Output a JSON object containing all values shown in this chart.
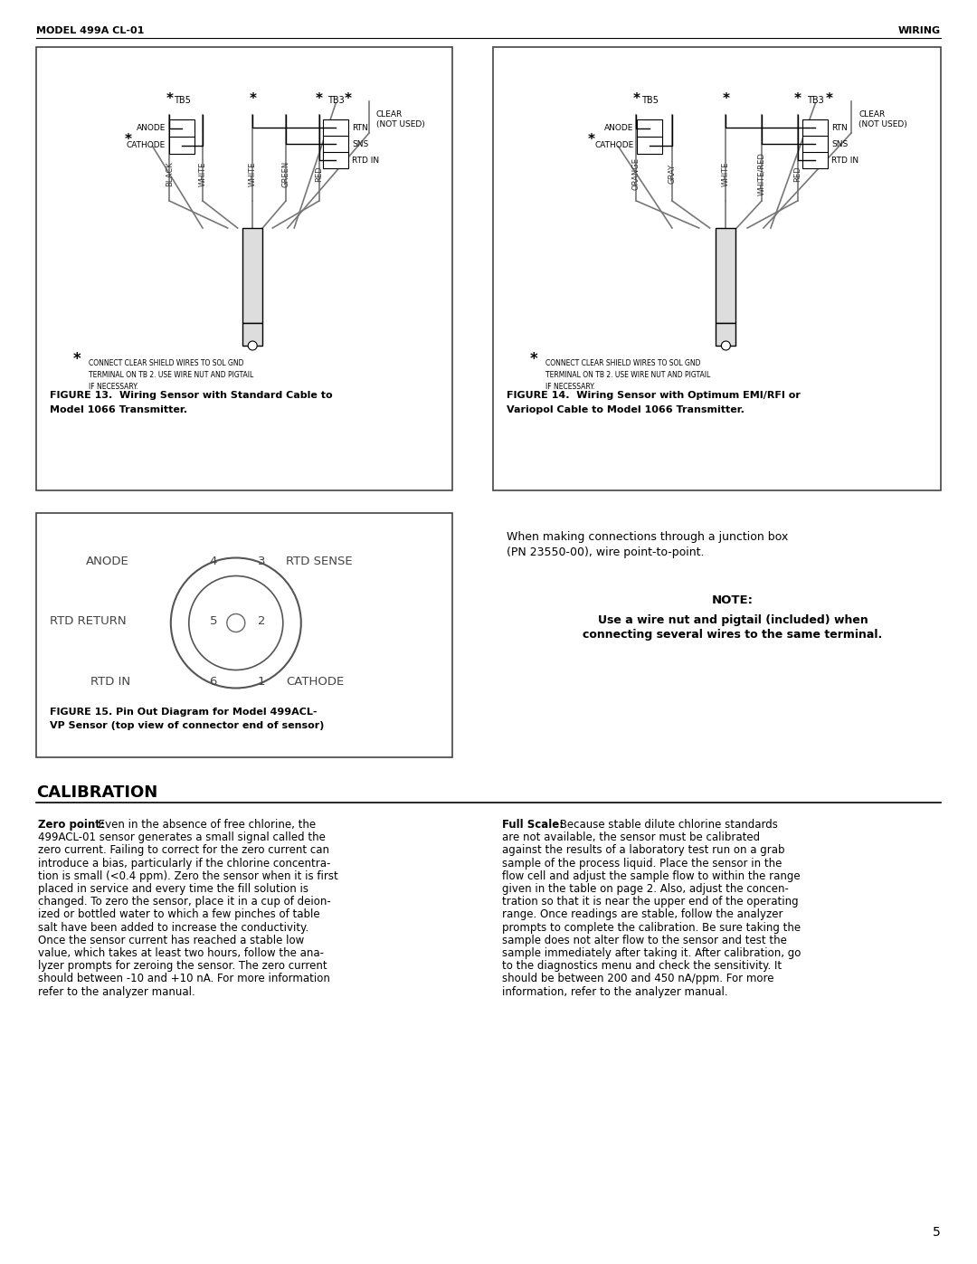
{
  "header_left": "MODEL 499A CL-01",
  "header_right": "WIRING",
  "page_number": "5",
  "fig13_title_bold": "FIGURE 13.  Wiring Sensor with Standard Cable to\nModel 1066 Transmitter.",
  "fig14_title_bold": "FIGURE 14.  Wiring Sensor with Optimum EMI/RFI or\nVariopol Cable to Model 1066 Transmitter.",
  "fig15_title_bold": "FIGURE 15. Pin Out Diagram for Model 499ACL-\nVP Sensor (top view of connector end of sensor)",
  "note_text": "NOTE:",
  "note_body": "Use a wire nut and pigtail (included) when\nconnecting several wires to the same terminal.",
  "junction_box_text": "When making connections through a junction box\n(PN 23550-00), wire point-to-point.",
  "calibration_title": "CALIBRATION",
  "shield_note": "CONNECT CLEAR SHIELD WIRES TO SOL GND\nTERMINAL ON TB 2. USE WIRE NUT AND PIGTAIL\nIF NECESSARY.",
  "bg_color": "#ffffff",
  "text_color": "#000000",
  "zero_lines": [
    "Zero point: Even in the absence of free chlorine, the",
    "499ACL-01 sensor generates a small signal called the",
    "zero current. Failing to correct for the zero current can",
    "introduce a bias, particularly if the chlorine concentra-",
    "tion is small (<0.4 ppm). Zero the sensor when it is first",
    "placed in service and every time the fill solution is",
    "changed. To zero the sensor, place it in a cup of deion-",
    "ized or bottled water to which a few pinches of table",
    "salt have been added to increase the conductivity.",
    "Once the sensor current has reached a stable low",
    "value, which takes at least two hours, follow the ana-",
    "lyzer prompts for zeroing the sensor. The zero current",
    "should between -10 and +10 nA. For more information",
    "refer to the analyzer manual."
  ],
  "full_scale_lines": [
    "Full Scale: Because stable dilute chlorine standards",
    "are not available, the sensor must be calibrated",
    "against the results of a laboratory test run on a grab",
    "sample of the process liquid. Place the sensor in the",
    "flow cell and adjust the sample flow to within the range",
    "given in the table on page 2. Also, adjust the concen-",
    "tration so that it is near the upper end of the operating",
    "range. Once readings are stable, follow the analyzer",
    "prompts to complete the calibration. Be sure taking the",
    "sample does not alter flow to the sensor and test the",
    "sample immediately after taking it. After calibration, go",
    "to the diagnostics menu and check the sensitivity. It",
    "should be between 200 and 450 nA/ppm. For more",
    "information, refer to the analyzer manual."
  ]
}
